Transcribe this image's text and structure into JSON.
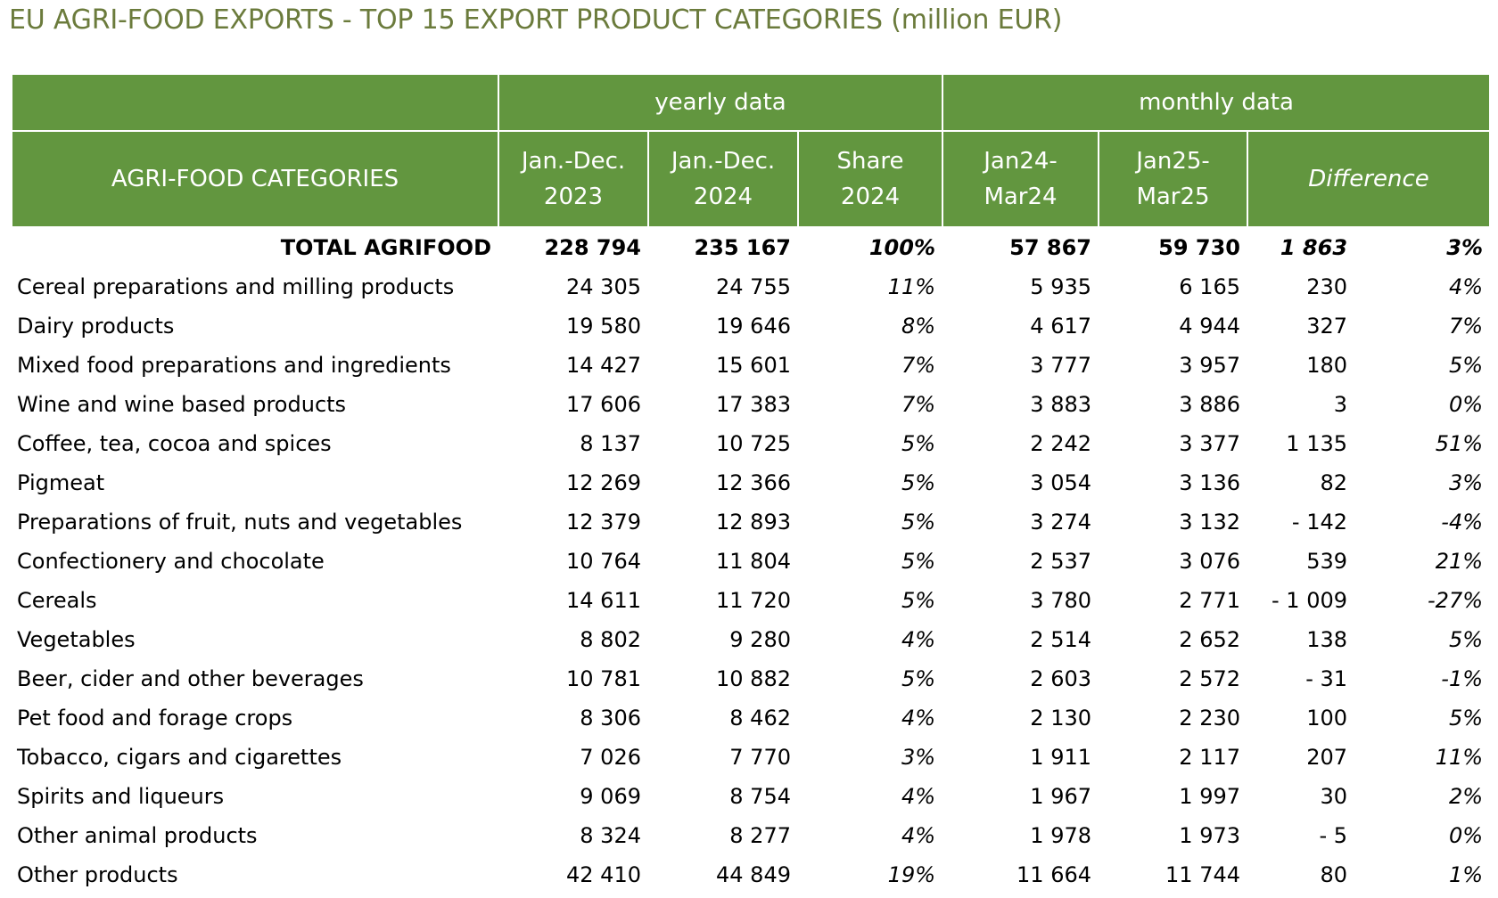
{
  "title": "EU AGRI-FOOD EXPORTS - TOP 15 EXPORT PRODUCT CATEGORIES (million EUR)",
  "header": {
    "group_yearly": "yearly data",
    "group_monthly": "monthly data",
    "category": "AGRI-FOOD CATEGORIES",
    "y2023_line1": "Jan.-Dec.",
    "y2023_line2": "2023",
    "y2024_line1": "Jan.-Dec.",
    "y2024_line2": "2024",
    "share_line1": "Share",
    "share_line2": "2024",
    "m24_line1": "Jan24-",
    "m24_line2": "Mar24",
    "m25_line1": "Jan25-",
    "m25_line2": "Mar25",
    "difference": "Difference"
  },
  "total": {
    "category": "TOTAL AGRIFOOD",
    "y2023": "228 794",
    "y2024": "235 167",
    "share": "100%",
    "m24": "57 867",
    "m25": "59 730",
    "diff_abs": "1 863",
    "diff_pct": "3%"
  },
  "rows": [
    {
      "category": "Cereal preparations and milling products",
      "y2023": "24 305",
      "y2024": "24 755",
      "share": "11%",
      "m24": "5 935",
      "m25": "6 165",
      "diff_abs": "230",
      "diff_pct": "4%"
    },
    {
      "category": "Dairy products",
      "y2023": "19 580",
      "y2024": "19 646",
      "share": "8%",
      "m24": "4 617",
      "m25": "4 944",
      "diff_abs": "327",
      "diff_pct": "7%"
    },
    {
      "category": "Mixed food preparations and ingredients",
      "y2023": "14 427",
      "y2024": "15 601",
      "share": "7%",
      "m24": "3 777",
      "m25": "3 957",
      "diff_abs": "180",
      "diff_pct": "5%"
    },
    {
      "category": "Wine and wine based products",
      "y2023": "17 606",
      "y2024": "17 383",
      "share": "7%",
      "m24": "3 883",
      "m25": "3 886",
      "diff_abs": "3",
      "diff_pct": "0%"
    },
    {
      "category": "Coffee, tea, cocoa and spices",
      "y2023": "8 137",
      "y2024": "10 725",
      "share": "5%",
      "m24": "2 242",
      "m25": "3 377",
      "diff_abs": "1 135",
      "diff_pct": "51%"
    },
    {
      "category": "Pigmeat",
      "y2023": "12 269",
      "y2024": "12 366",
      "share": "5%",
      "m24": "3 054",
      "m25": "3 136",
      "diff_abs": "82",
      "diff_pct": "3%"
    },
    {
      "category": "Preparations of fruit, nuts and vegetables",
      "y2023": "12 379",
      "y2024": "12 893",
      "share": "5%",
      "m24": "3 274",
      "m25": "3 132",
      "diff_abs": "-  142",
      "diff_pct": "-4%"
    },
    {
      "category": "Confectionery and chocolate",
      "y2023": "10 764",
      "y2024": "11 804",
      "share": "5%",
      "m24": "2 537",
      "m25": "3 076",
      "diff_abs": "539",
      "diff_pct": "21%"
    },
    {
      "category": "Cereals",
      "y2023": "14 611",
      "y2024": "11 720",
      "share": "5%",
      "m24": "3 780",
      "m25": "2 771",
      "diff_abs": "- 1 009",
      "diff_pct": "-27%"
    },
    {
      "category": "Vegetables",
      "y2023": "8 802",
      "y2024": "9 280",
      "share": "4%",
      "m24": "2 514",
      "m25": "2 652",
      "diff_abs": "138",
      "diff_pct": "5%"
    },
    {
      "category": "Beer, cider and other beverages",
      "y2023": "10 781",
      "y2024": "10 882",
      "share": "5%",
      "m24": "2 603",
      "m25": "2 572",
      "diff_abs": "-  31",
      "diff_pct": "-1%"
    },
    {
      "category": "Pet food and forage crops",
      "y2023": "8 306",
      "y2024": "8 462",
      "share": "4%",
      "m24": "2 130",
      "m25": "2 230",
      "diff_abs": "100",
      "diff_pct": "5%"
    },
    {
      "category": "Tobacco, cigars and cigarettes",
      "y2023": "7 026",
      "y2024": "7 770",
      "share": "3%",
      "m24": "1 911",
      "m25": "2 117",
      "diff_abs": "207",
      "diff_pct": "11%"
    },
    {
      "category": "Spirits and liqueurs",
      "y2023": "9 069",
      "y2024": "8 754",
      "share": "4%",
      "m24": "1 967",
      "m25": "1 997",
      "diff_abs": "30",
      "diff_pct": "2%"
    },
    {
      "category": "Other animal products",
      "y2023": "8 324",
      "y2024": "8 277",
      "share": "4%",
      "m24": "1 978",
      "m25": "1 973",
      "diff_abs": "-  5",
      "diff_pct": "0%"
    },
    {
      "category": "Other products",
      "y2023": "42 410",
      "y2024": "44 849",
      "share": "19%",
      "m24": "11 664",
      "m25": "11 744",
      "diff_abs": "80",
      "diff_pct": "1%"
    }
  ]
}
